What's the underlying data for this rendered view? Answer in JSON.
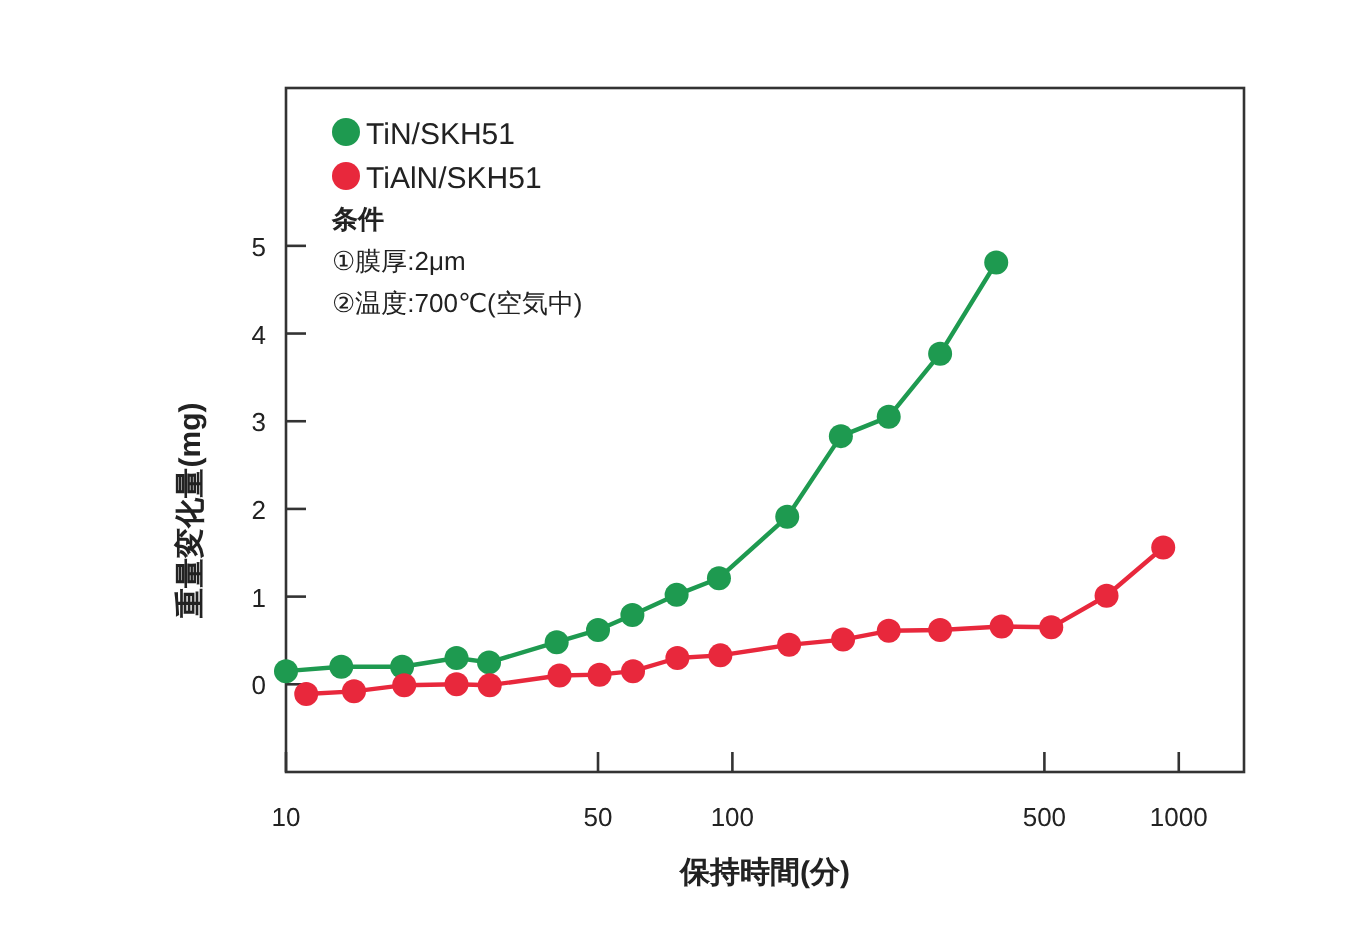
{
  "chart_data": {
    "type": "line",
    "xlabel": "保持時間(分)",
    "ylabel": "重量変化量(mg)",
    "log": "x",
    "xlim": [
      10,
      1400
    ],
    "xticks": [
      10,
      50,
      100,
      500,
      1000
    ],
    "ylim": [
      -1,
      6.8
    ],
    "yticks": [
      0,
      1,
      2,
      3,
      4,
      5
    ],
    "marker": "circle",
    "legend": "top left",
    "grid": false,
    "annotations": [
      "条件",
      "①膜厚:2μm",
      "②温度:700℃(空気中)"
    ],
    "series": [
      {
        "name": "TiN/SKH51",
        "color": "#1e9a50",
        "x": [
          10,
          13.3,
          18.2,
          24.1,
          28.5,
          40.4,
          50,
          59.7,
          75,
          93.3,
          132.7,
          175,
          224,
          292,
          390
        ],
        "values": [
          0.15,
          0.2,
          0.2,
          0.3,
          0.25,
          0.48,
          0.62,
          0.79,
          1.02,
          1.21,
          1.91,
          2.83,
          3.05,
          3.77,
          4.81
        ]
      },
      {
        "name": "TiAlN/SKH51",
        "color": "#e8283c",
        "x": [
          11.1,
          14.2,
          18.4,
          24.1,
          28.6,
          41,
          50.4,
          59.9,
          75.3,
          94,
          134,
          177,
          224,
          292,
          401,
          518,
          689,
          923
        ],
        "values": [
          -0.11,
          -0.08,
          -0.01,
          0,
          -0.01,
          0.1,
          0.11,
          0.15,
          0.3,
          0.33,
          0.45,
          0.51,
          0.61,
          0.62,
          0.66,
          0.65,
          1.01,
          1.56
        ]
      }
    ]
  }
}
